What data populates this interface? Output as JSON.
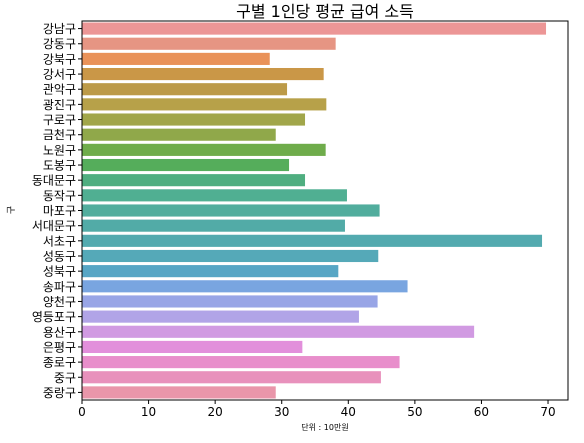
{
  "chart_data": {
    "type": "bar",
    "orientation": "horizontal",
    "title": "구별 1인당 평균 급여 소득",
    "xlabel": "단위 : 10만원",
    "ylabel": "구",
    "xlim": [
      0,
      73
    ],
    "xticks": [
      0,
      10,
      20,
      30,
      40,
      50,
      60,
      70
    ],
    "grid": false,
    "categories": [
      "강남구",
      "강동구",
      "강북구",
      "강서구",
      "관악구",
      "광진구",
      "구로구",
      "금천구",
      "노원구",
      "도봉구",
      "동대문구",
      "동작구",
      "마포구",
      "서대문구",
      "서초구",
      "성동구",
      "성북구",
      "송파구",
      "양천구",
      "영등포구",
      "용산구",
      "은평구",
      "종로구",
      "중구",
      "중랑구"
    ],
    "values": [
      69.7,
      38.1,
      28.2,
      36.3,
      30.8,
      36.7,
      33.5,
      29.1,
      36.6,
      31.1,
      33.5,
      39.8,
      44.7,
      39.5,
      69.1,
      44.5,
      38.5,
      48.9,
      44.4,
      41.6,
      58.9,
      33.1,
      47.7,
      44.9,
      29.1
    ],
    "colors": [
      "#ec9696",
      "#e69583",
      "#e99259",
      "#ca9747",
      "#bc9a48",
      "#b7a149",
      "#a1a64a",
      "#90a84a",
      "#6fac4b",
      "#55ad5b",
      "#4fae80",
      "#50af92",
      "#51ad9d",
      "#52aba7",
      "#53aaaf",
      "#55a9b8",
      "#57a6c5",
      "#79a5e0",
      "#98a5e6",
      "#b1a4e7",
      "#d19ae2",
      "#e28fdb",
      "#e88ecb",
      "#e891bc",
      "#e996aa"
    ]
  }
}
